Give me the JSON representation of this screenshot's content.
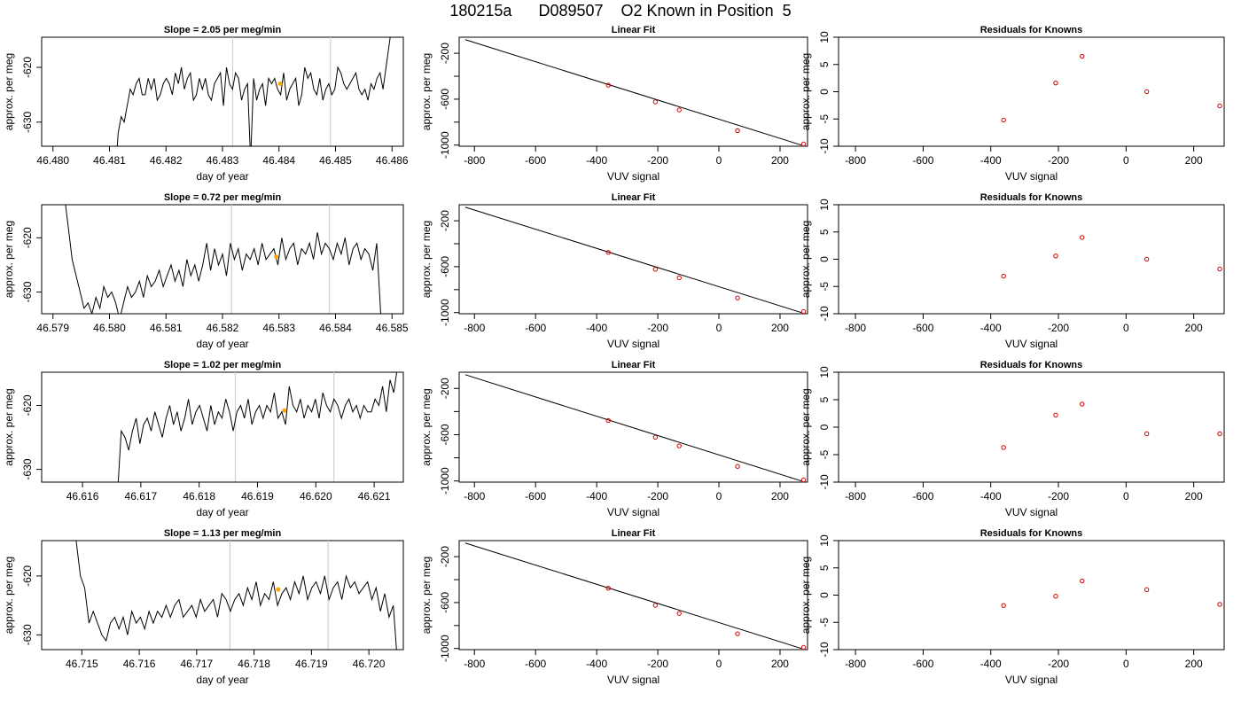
{
  "page": {
    "title": "180215a      D089507    O2 Known in Position  5"
  },
  "chart_data": [
    {
      "type": "line",
      "panel": "trace",
      "row": 0,
      "title": "Slope =  2.05  per meg/min",
      "xlabel": "day of year",
      "ylabel": "approx. per meg",
      "xlim": [
        46.4798,
        46.4862
      ],
      "ylim": [
        -634.4,
        -614.5
      ],
      "xticks": [
        "46.480",
        "46.481",
        "46.482",
        "46.483",
        "46.484",
        "46.485",
        "46.486"
      ],
      "yticks": [
        "-620",
        "-630"
      ],
      "ytick_values": [
        -620,
        -630
      ],
      "vlines": [
        46.48318,
        46.48491
      ],
      "highlight": {
        "x": 46.48402,
        "y": -623.0
      },
      "series": [
        {
          "x_start": 46.4811,
          "x_end": 46.486,
          "values": [
            -640,
            -632,
            -629,
            -630,
            -627,
            -624,
            -625,
            -623,
            -622,
            -625,
            -625,
            -622,
            -624,
            -622,
            -626,
            -625,
            -623,
            -622,
            -623,
            -625,
            -621,
            -623,
            -620,
            -624,
            -622,
            -621,
            -626,
            -625,
            -622,
            -624,
            -622,
            -625,
            -626,
            -623,
            -622,
            -621,
            -627,
            -620,
            -623,
            -624,
            -621,
            -622,
            -626,
            -624,
            -623,
            -637,
            -622,
            -626,
            -624,
            -623,
            -627,
            -622,
            -623,
            -622,
            -624,
            -625,
            -621,
            -626,
            -624,
            -623,
            -622,
            -627,
            -625,
            -620,
            -622,
            -621,
            -624,
            -625,
            -622,
            -626,
            -624,
            -623,
            -625,
            -624,
            -620,
            -621,
            -623,
            -624,
            -623,
            -622,
            -621,
            -624,
            -625,
            -624,
            -626,
            -623,
            -624,
            -622,
            -621,
            -624,
            -620,
            -616,
            -612
          ]
        }
      ]
    },
    {
      "type": "scatter",
      "panel": "fit",
      "row": 0,
      "title": "Linear Fit",
      "xlabel": "VUV signal",
      "ylabel": "approx. per meg",
      "xlim": [
        -850,
        290
      ],
      "ylim": [
        -1010,
        -60
      ],
      "xticks": [
        "-800",
        "-600",
        "-400",
        "-200",
        "0",
        "200"
      ],
      "yticks": [
        "-200",
        "-600",
        "-1000"
      ],
      "points_x": [
        -362,
        -208,
        -130,
        61,
        277
      ],
      "points_y": [
        -478.1,
        -623.9,
        -694.2,
        -874.3,
        -1077.4
      ],
      "fit_line": {
        "x": [
          -830,
          270
        ],
        "y": [
          -81.5,
          -1000
        ]
      }
    },
    {
      "type": "scatter",
      "panel": "resid",
      "row": 0,
      "title": "Residuals for Knowns",
      "xlabel": "VUV signal",
      "ylabel": "approx. per meg",
      "xlim": [
        -850,
        290
      ],
      "ylim": [
        -10,
        10
      ],
      "xticks": [
        "-800",
        "-600",
        "-400",
        "-200",
        "0",
        "200"
      ],
      "yticks": [
        "-10",
        "-5",
        "0",
        "5",
        "10"
      ],
      "points_x": [
        -362,
        -208,
        -130,
        61,
        277
      ],
      "points_y": [
        -5.2,
        1.6,
        6.5,
        0.0,
        -2.6
      ]
    },
    {
      "type": "line",
      "panel": "trace",
      "row": 1,
      "title": "Slope =  0.72  per meg/min",
      "xlabel": "day of year",
      "ylabel": "approx. per meg",
      "xlim": [
        46.5788,
        46.5852
      ],
      "ylim": [
        -634.0,
        -613.9
      ],
      "xticks": [
        "46.579",
        "46.580",
        "46.581",
        "46.582",
        "46.583",
        "46.584",
        "46.585"
      ],
      "yticks": [
        "-620",
        "-630"
      ],
      "ytick_values": [
        -620,
        -630
      ],
      "vlines": [
        46.58216,
        46.58389
      ],
      "highlight": {
        "x": 46.58295,
        "y": -623.5
      },
      "series": [
        {
          "x_start": 46.5792,
          "x_end": 46.5848,
          "values": [
            -612,
            -618,
            -624,
            -627,
            -630,
            -633,
            -632,
            -634,
            -631,
            -633,
            -629,
            -631,
            -630,
            -632,
            -635,
            -632,
            -629,
            -631,
            -630,
            -628,
            -631,
            -627,
            -629,
            -628,
            -626,
            -629,
            -627,
            -625,
            -628,
            -626,
            -629,
            -624,
            -627,
            -625,
            -628,
            -625,
            -621,
            -626,
            -622,
            -625,
            -623,
            -627,
            -621,
            -624,
            -622,
            -626,
            -623,
            -624,
            -622,
            -625,
            -621,
            -624,
            -623,
            -622,
            -625,
            -620,
            -624,
            -622,
            -621,
            -625,
            -622,
            -623,
            -621,
            -624,
            -619,
            -623,
            -621,
            -622,
            -624,
            -621,
            -623,
            -620,
            -625,
            -622,
            -621,
            -624,
            -622,
            -623,
            -626,
            -621,
            -634
          ]
        }
      ]
    },
    {
      "type": "scatter",
      "panel": "fit",
      "row": 1,
      "title": "Linear Fit",
      "xlabel": "VUV signal",
      "ylabel": "approx. per meg",
      "xlim": [
        -850,
        290
      ],
      "ylim": [
        -1010,
        -60
      ],
      "xticks": [
        "-800",
        "-600",
        "-400",
        "-200",
        "0",
        "200"
      ],
      "yticks": [
        "-200",
        "-600",
        "-1000"
      ],
      "points_x": [
        -362,
        -208,
        -130,
        61,
        277
      ],
      "points_y": [
        -475.9,
        -622.5,
        -696.8,
        -872.9,
        -1076.5
      ],
      "fit_line": {
        "x": [
          -830,
          270
        ],
        "y": [
          -81.5,
          -1000
        ]
      }
    },
    {
      "type": "scatter",
      "panel": "resid",
      "row": 1,
      "title": "Residuals for Knowns",
      "xlabel": "VUV signal",
      "ylabel": "approx. per meg",
      "xlim": [
        -850,
        290
      ],
      "ylim": [
        -10,
        10
      ],
      "xticks": [
        "-800",
        "-600",
        "-400",
        "-200",
        "0",
        "200"
      ],
      "yticks": [
        "-10",
        "-5",
        "0",
        "5",
        "10"
      ],
      "points_x": [
        -362,
        -208,
        -130,
        61,
        277
      ],
      "points_y": [
        -3.1,
        0.6,
        4.0,
        0.0,
        -1.8
      ]
    },
    {
      "type": "line",
      "panel": "trace",
      "row": 2,
      "title": "Slope =  1.02  per meg/min",
      "xlabel": "day of year",
      "ylabel": "approx. per meg",
      "xlim": [
        46.6153,
        46.6215
      ],
      "ylim": [
        -632.0,
        -614.8
      ],
      "xticks": [
        "46.616",
        "46.617",
        "46.618",
        "46.619",
        "46.620",
        "46.621"
      ],
      "yticks": [
        "-620",
        "-630"
      ],
      "ytick_values": [
        -620,
        -630
      ],
      "vlines": [
        46.61862,
        46.62031
      ],
      "highlight": {
        "x": 46.61946,
        "y": -620.8
      },
      "series": [
        {
          "x_start": 46.6166,
          "x_end": 46.6214,
          "values": [
            -634,
            -624,
            -625,
            -627,
            -624,
            -622,
            -626,
            -623,
            -622,
            -624,
            -621,
            -623,
            -625,
            -622,
            -620,
            -623,
            -621,
            -624,
            -622,
            -619,
            -623,
            -621,
            -620,
            -622,
            -624,
            -620,
            -623,
            -621,
            -622,
            -619,
            -621,
            -624,
            -621,
            -620,
            -622,
            -619,
            -623,
            -621,
            -620,
            -622,
            -620,
            -621,
            -618,
            -622,
            -621,
            -623,
            -617,
            -620,
            -621,
            -619,
            -622,
            -620,
            -621,
            -619,
            -622,
            -618,
            -620,
            -621,
            -619,
            -620,
            -622,
            -620,
            -619,
            -621,
            -620,
            -622,
            -620,
            -621,
            -621,
            -619,
            -620,
            -617,
            -621,
            -616,
            -618,
            -614
          ]
        }
      ]
    },
    {
      "type": "scatter",
      "panel": "fit",
      "row": 2,
      "title": "Linear Fit",
      "xlabel": "VUV signal",
      "ylabel": "approx. per meg",
      "xlim": [
        -850,
        290
      ],
      "ylim": [
        -1010,
        -60
      ],
      "xticks": [
        "-800",
        "-600",
        "-400",
        "-200",
        "0",
        "200"
      ],
      "yticks": [
        "-200",
        "-600",
        "-1000"
      ],
      "points_x": [
        -362,
        -208,
        -130,
        61,
        277
      ],
      "points_y": [
        -476.8,
        -622.0,
        -696.6,
        -874.0,
        -1076.9
      ],
      "fit_line": {
        "x": [
          -830,
          270
        ],
        "y": [
          -81.5,
          -1000
        ]
      }
    },
    {
      "type": "scatter",
      "panel": "resid",
      "row": 2,
      "title": "Residuals for Knowns",
      "xlabel": "VUV signal",
      "ylabel": "approx. per meg",
      "xlim": [
        -850,
        290
      ],
      "ylim": [
        -10,
        10
      ],
      "xticks": [
        "-800",
        "-600",
        "-400",
        "-200",
        "0",
        "200"
      ],
      "yticks": [
        "-10",
        "-5",
        "0",
        "5",
        "10"
      ],
      "points_x": [
        -362,
        -208,
        -130,
        61,
        277
      ],
      "points_y": [
        -3.7,
        2.2,
        4.2,
        -1.2,
        -1.2
      ]
    },
    {
      "type": "line",
      "panel": "trace",
      "row": 3,
      "title": "Slope =  1.13  per meg/min",
      "xlabel": "day of year",
      "ylabel": "approx. per meg",
      "xlim": [
        46.7143,
        46.7206
      ],
      "ylim": [
        -632.5,
        -614.0
      ],
      "xticks": [
        "46.715",
        "46.716",
        "46.717",
        "46.718",
        "46.719",
        "46.720"
      ],
      "yticks": [
        "-620",
        "-630"
      ],
      "ytick_values": [
        -620,
        -630
      ],
      "vlines": [
        46.71758,
        46.71929
      ],
      "highlight": {
        "x": 46.71842,
        "y": -622.3
      },
      "series": [
        {
          "x_start": 46.7149,
          "x_end": 46.7205,
          "values": [
            -614,
            -620,
            -622,
            -628,
            -626,
            -628,
            -630,
            -631,
            -628,
            -627,
            -629,
            -627,
            -630,
            -626,
            -628,
            -627,
            -629,
            -626,
            -628,
            -626,
            -627,
            -625,
            -627,
            -625,
            -624,
            -627,
            -626,
            -625,
            -627,
            -624,
            -626,
            -625,
            -624,
            -627,
            -623,
            -624,
            -626,
            -624,
            -623,
            -625,
            -622,
            -624,
            -621,
            -625,
            -623,
            -624,
            -621,
            -625,
            -623,
            -622,
            -624,
            -621,
            -623,
            -620,
            -624,
            -622,
            -621,
            -623,
            -620,
            -624,
            -622,
            -621,
            -624,
            -620,
            -622,
            -621,
            -623,
            -622,
            -621,
            -624,
            -622,
            -626,
            -623,
            -627,
            -625,
            -635
          ]
        }
      ]
    },
    {
      "type": "scatter",
      "panel": "fit",
      "row": 3,
      "title": "Linear Fit",
      "xlabel": "VUV signal",
      "ylabel": "approx. per meg",
      "xlim": [
        -850,
        290
      ],
      "ylim": [
        -1010,
        -60
      ],
      "xticks": [
        "-800",
        "-600",
        "-400",
        "-200",
        "0",
        "200"
      ],
      "yticks": [
        "-200",
        "-600",
        "-1000"
      ],
      "points_x": [
        -362,
        -208,
        -130,
        61,
        277
      ],
      "points_y": [
        -474.7,
        -623.8,
        -694.5,
        -872.1,
        -1077.3
      ],
      "fit_line": {
        "x": [
          -830,
          270
        ],
        "y": [
          -81.5,
          -1000
        ]
      }
    },
    {
      "type": "scatter",
      "panel": "resid",
      "row": 3,
      "title": "Residuals for Knowns",
      "xlabel": "VUV signal",
      "ylabel": "approx. per meg",
      "xlim": [
        -850,
        290
      ],
      "ylim": [
        -10,
        10
      ],
      "xticks": [
        "-800",
        "-600",
        "-400",
        "-200",
        "0",
        "200"
      ],
      "yticks": [
        "-10",
        "-5",
        "0",
        "5",
        "10"
      ],
      "points_x": [
        -362,
        -208,
        -130,
        61,
        277
      ],
      "points_y": [
        -1.9,
        -0.2,
        2.6,
        1.0,
        -1.7
      ]
    }
  ],
  "colors": {
    "line": "#000000",
    "vline": "#d0d0d0",
    "highlight": "#ffa500",
    "points": "#cc0000",
    "frame": "#000000"
  }
}
